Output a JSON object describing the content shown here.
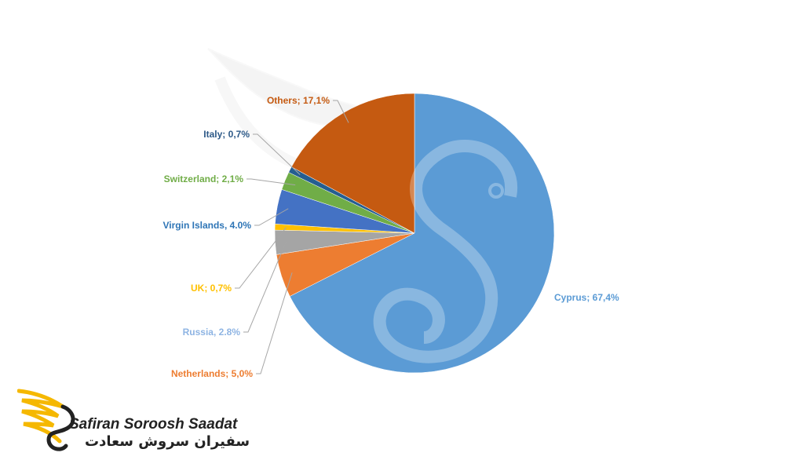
{
  "chart_data": {
    "type": "pie",
    "title": "",
    "slices": [
      {
        "label": "Cyprus; 67,4%",
        "name": "Cyprus",
        "value": 67.4,
        "color": "#5B9BD5"
      },
      {
        "label": "Netherlands; 5,0%",
        "name": "Netherlands",
        "value": 5.0,
        "color": "#ED7D31"
      },
      {
        "label": "Russia, 2.8%",
        "name": "Russia",
        "value": 2.8,
        "color": "#A5A5A5"
      },
      {
        "label": "UK; 0,7%",
        "name": "UK",
        "value": 0.7,
        "color": "#FFC000"
      },
      {
        "label": "Virgin Islands, 4.0%",
        "name": "Virgin Islands",
        "value": 4.0,
        "color": "#4472C4"
      },
      {
        "label": "Switzerland; 2,1%",
        "name": "Switzerland",
        "value": 2.1,
        "color": "#70AD47"
      },
      {
        "label": "Italy; 0,7%",
        "name": "Italy",
        "value": 0.7,
        "color": "#255E91"
      },
      {
        "label": "Others; 17,1%",
        "name": "Others",
        "value": 17.1,
        "color": "#C55A11"
      }
    ],
    "label_colors": {
      "Cyprus": "#5B9BD5",
      "Netherlands": "#ED7D31",
      "Russia": "#8EB4E3",
      "UK": "#FFC000",
      "Virgin Islands": "#2E75B6",
      "Switzerland": "#70AD47",
      "Italy": "#2E5A88",
      "Others": "#C55A11"
    }
  },
  "logo": {
    "text_en": "Safiran Soroosh Saadat",
    "text_fa": "سفیران سروش سعادت",
    "accent_color": "#F5B800"
  }
}
